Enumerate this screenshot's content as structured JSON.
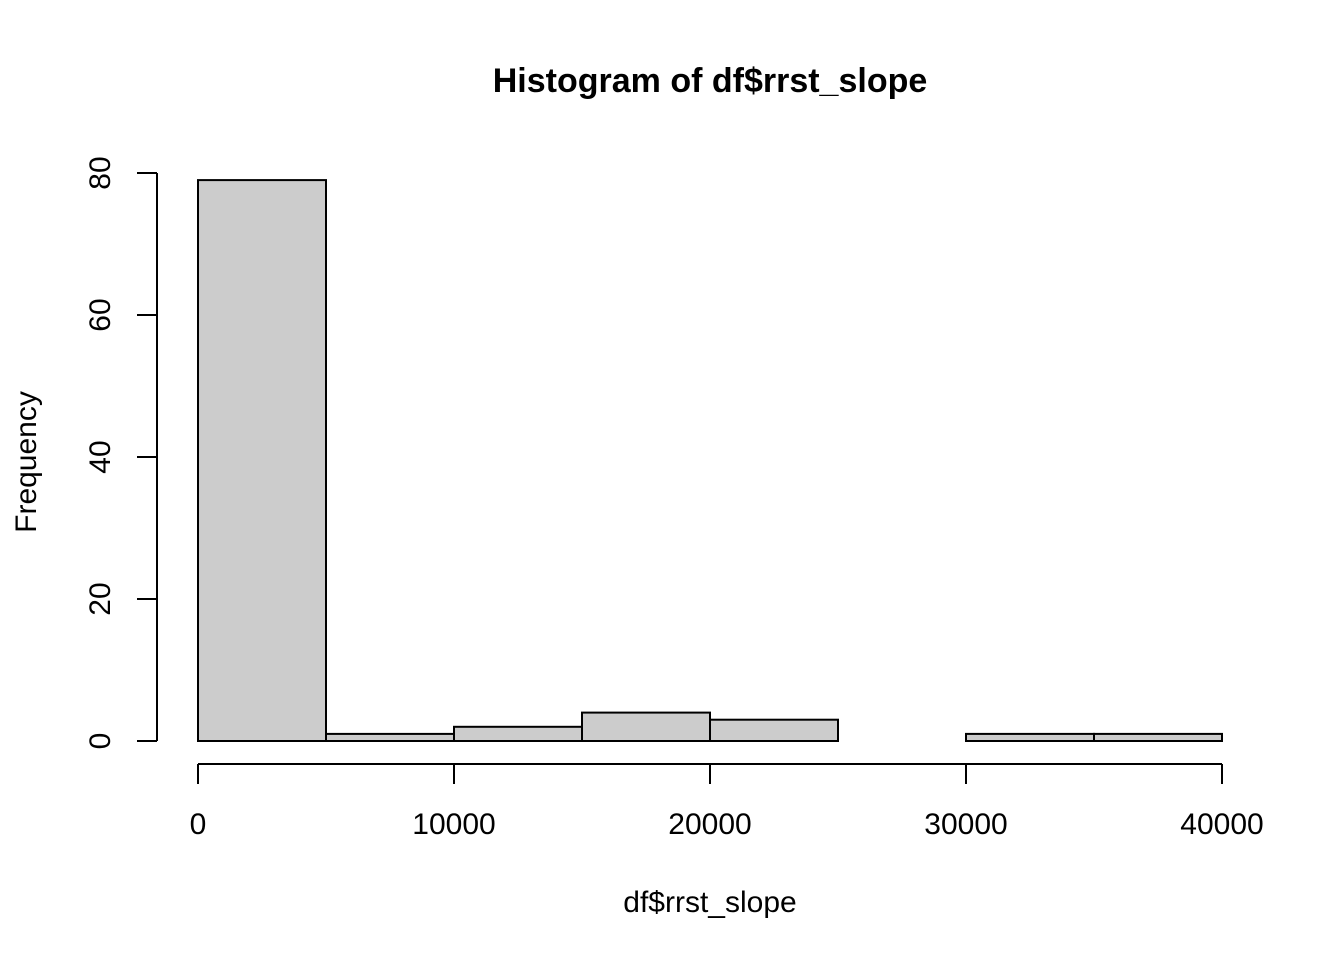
{
  "chart_data": {
    "type": "bar",
    "title": "Histogram of df$rrst_slope",
    "xlabel": "df$rrst_slope",
    "ylabel": "Frequency",
    "bins": [
      {
        "start": 0,
        "end": 5000,
        "count": 79
      },
      {
        "start": 5000,
        "end": 10000,
        "count": 1
      },
      {
        "start": 10000,
        "end": 15000,
        "count": 2
      },
      {
        "start": 15000,
        "end": 20000,
        "count": 4
      },
      {
        "start": 20000,
        "end": 25000,
        "count": 3
      },
      {
        "start": 25000,
        "end": 30000,
        "count": 0
      },
      {
        "start": 30000,
        "end": 35000,
        "count": 1
      },
      {
        "start": 35000,
        "end": 40000,
        "count": 1
      }
    ],
    "x_ticks": [
      0,
      10000,
      20000,
      30000,
      40000
    ],
    "y_ticks": [
      0,
      20,
      40,
      60,
      80
    ],
    "xlim": [
      0,
      40000
    ],
    "ylim": [
      0,
      80
    ],
    "bar_fill": "#cccccc",
    "bar_stroke": "#000000",
    "grid": false,
    "legend": "none"
  }
}
